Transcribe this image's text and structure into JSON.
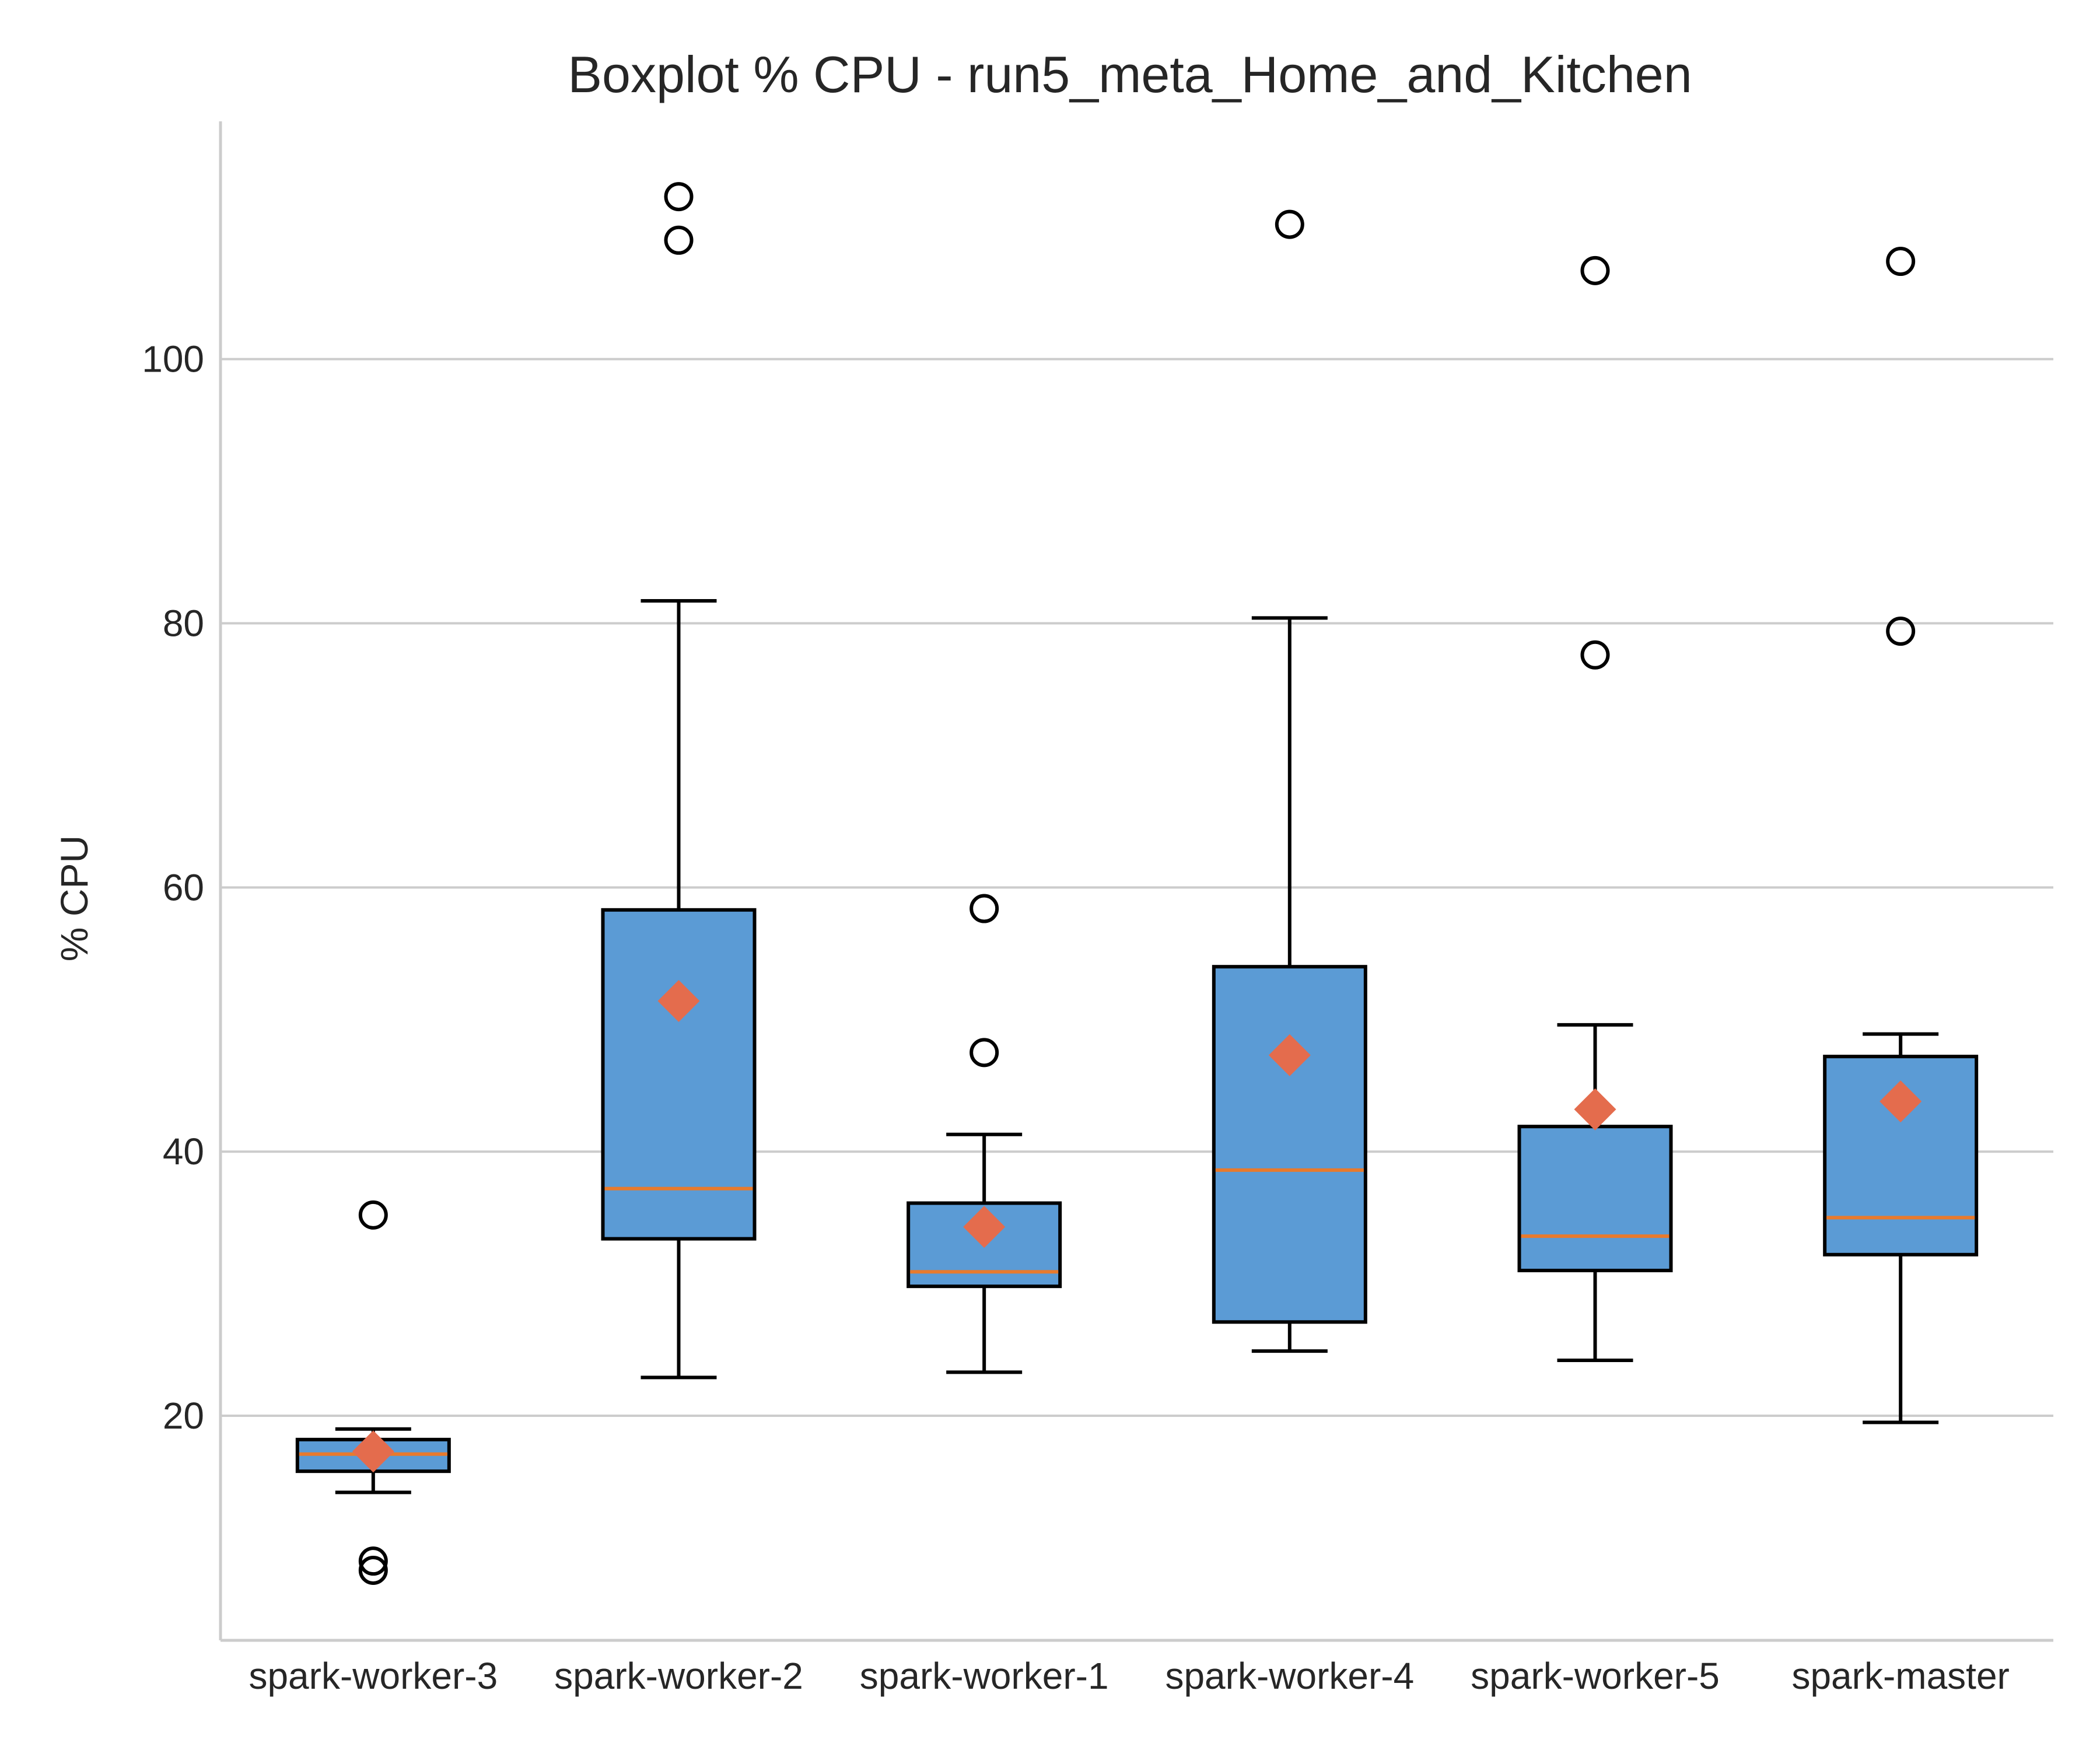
{
  "colors": {
    "box_fill": "#5b9bd5",
    "box_edge": "#000000",
    "median": "#e87a2d",
    "mean_marker": "#e46c4d",
    "grid": "#cccccc",
    "text": "#262626"
  },
  "chart_data": {
    "type": "boxplot",
    "title": "Boxplot % CPU - run5_meta_Home_and_Kitchen",
    "xlabel": "",
    "ylabel": "% CPU",
    "ylim": [
      3,
      118
    ],
    "yticks": [
      20,
      40,
      60,
      80,
      100
    ],
    "grid": "horizontal",
    "categories": [
      "spark-worker-3",
      "spark-worker-2",
      "spark-worker-1",
      "spark-worker-4",
      "spark-worker-5",
      "spark-master"
    ],
    "boxes": [
      {
        "category": "spark-worker-3",
        "whisker_low": 14.2,
        "q1": 15.8,
        "median": 17.1,
        "q3": 18.2,
        "whisker_high": 19.0,
        "mean": 17.3,
        "outliers": [
          35.2,
          9.0,
          8.3
        ]
      },
      {
        "category": "spark-worker-2",
        "whisker_low": 22.9,
        "q1": 33.4,
        "median": 37.2,
        "q3": 58.3,
        "whisker_high": 81.7,
        "mean": 51.4,
        "outliers": [
          112.3,
          109.0
        ]
      },
      {
        "category": "spark-worker-1",
        "whisker_low": 23.3,
        "q1": 29.8,
        "median": 30.9,
        "q3": 36.1,
        "whisker_high": 41.3,
        "mean": 34.3,
        "outliers": [
          58.4,
          47.5
        ]
      },
      {
        "category": "spark-worker-4",
        "whisker_low": 24.9,
        "q1": 27.1,
        "median": 38.6,
        "q3": 54.0,
        "whisker_high": 80.4,
        "mean": 47.3,
        "outliers": [
          110.2
        ]
      },
      {
        "category": "spark-worker-5",
        "whisker_low": 24.2,
        "q1": 31.0,
        "median": 33.6,
        "q3": 41.9,
        "whisker_high": 49.6,
        "mean": 43.2,
        "outliers": [
          106.7,
          77.6
        ]
      },
      {
        "category": "spark-master",
        "whisker_low": 19.5,
        "q1": 32.2,
        "median": 35.0,
        "q3": 47.2,
        "whisker_high": 48.9,
        "mean": 43.8,
        "outliers": [
          107.4,
          79.4
        ]
      }
    ]
  }
}
